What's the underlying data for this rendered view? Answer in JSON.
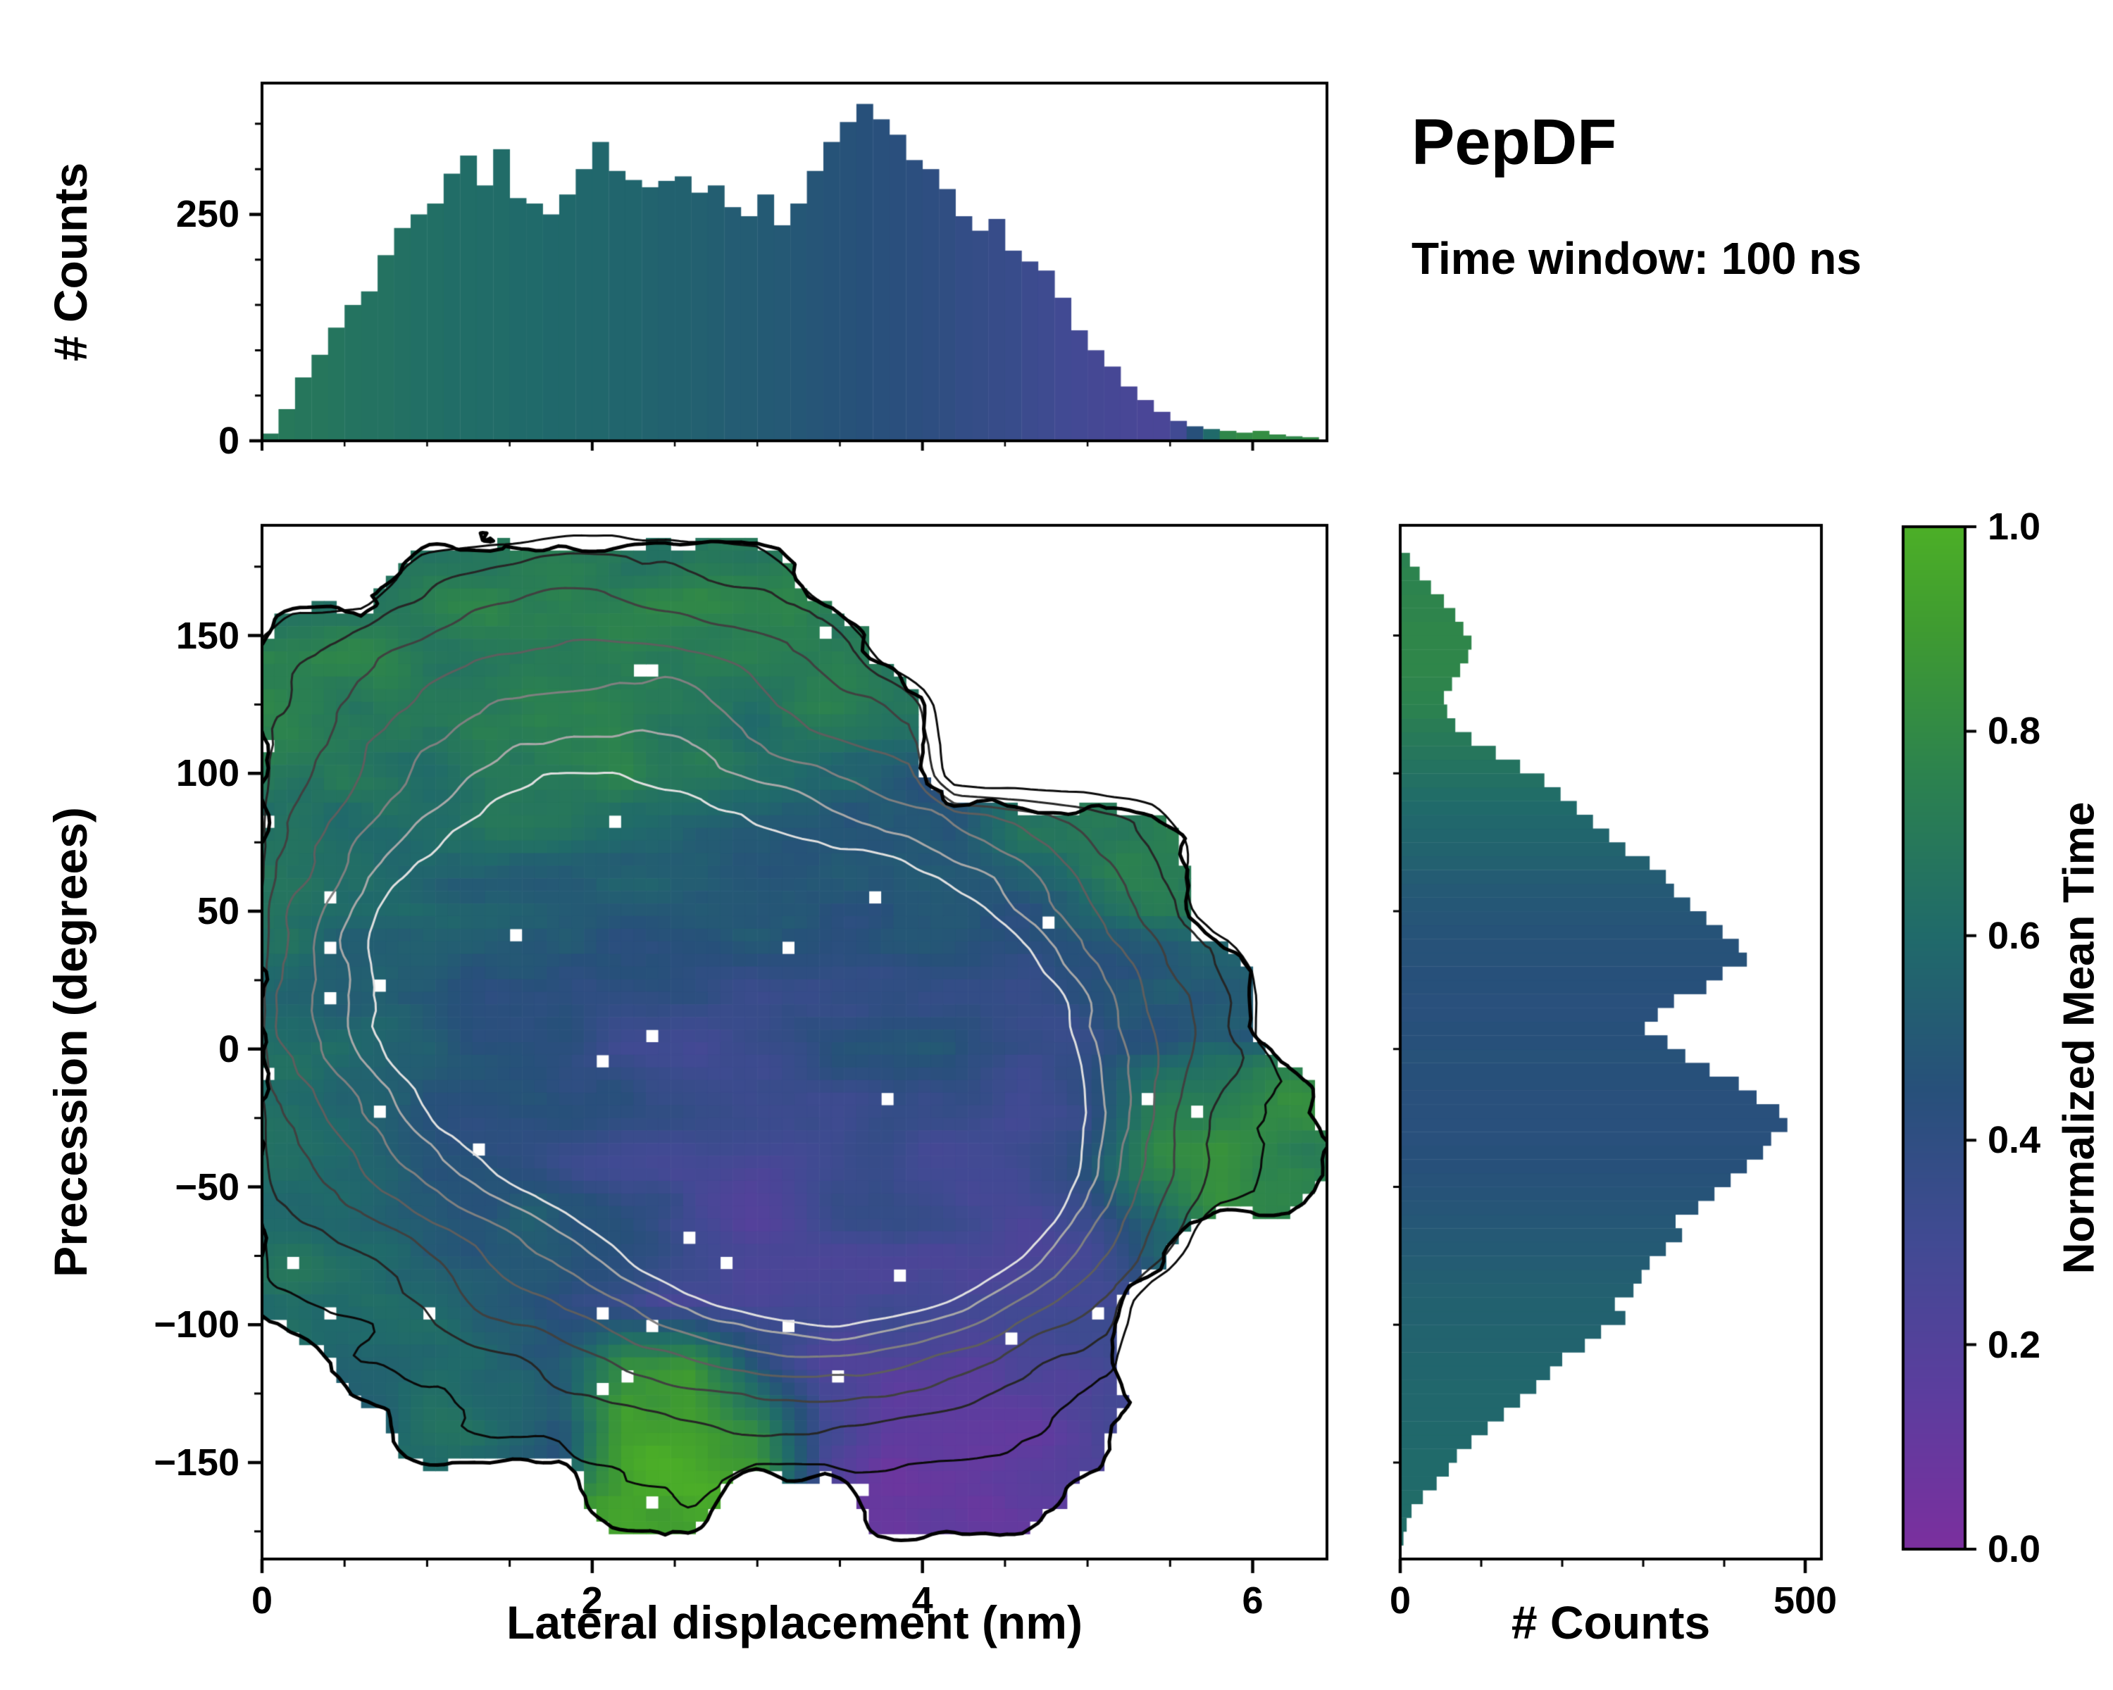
{
  "header": {
    "title": "PepDF",
    "subtitle": "Time window: 100 ns"
  },
  "colors": {
    "background": "#ffffff",
    "axis": "#000000",
    "colormap_stops": [
      [
        0.0,
        "#7b2f9e"
      ],
      [
        0.15,
        "#5c3d9e"
      ],
      [
        0.3,
        "#414a93"
      ],
      [
        0.45,
        "#27507a"
      ],
      [
        0.6,
        "#206a6a"
      ],
      [
        0.75,
        "#2b8150"
      ],
      [
        0.9,
        "#3f9b31"
      ],
      [
        1.0,
        "#4caf27"
      ]
    ]
  },
  "chart_data": [
    {
      "id": "top-histogram",
      "type": "bar",
      "ylabel": "# Counts",
      "xlim": [
        0,
        6.45
      ],
      "ylim": [
        0,
        395
      ],
      "yticks": [
        0,
        250
      ],
      "ytick_labels": [
        "0",
        "250"
      ],
      "x_start": 0,
      "bin_width": 0.1,
      "values": [
        8,
        35,
        70,
        95,
        125,
        150,
        165,
        205,
        235,
        250,
        262,
        295,
        315,
        282,
        322,
        268,
        262,
        250,
        272,
        300,
        330,
        298,
        288,
        280,
        287,
        292,
        274,
        282,
        258,
        248,
        272,
        238,
        262,
        298,
        330,
        352,
        372,
        355,
        338,
        310,
        300,
        278,
        248,
        232,
        245,
        210,
        198,
        188,
        158,
        122,
        100,
        82,
        60,
        45,
        32,
        22,
        16,
        13,
        11,
        9,
        11,
        7,
        5,
        4
      ],
      "color_values": [
        0.7,
        0.69,
        0.68,
        0.68,
        0.67,
        0.66,
        0.65,
        0.65,
        0.64,
        0.63,
        0.63,
        0.62,
        0.62,
        0.61,
        0.61,
        0.6,
        0.6,
        0.59,
        0.59,
        0.58,
        0.58,
        0.57,
        0.57,
        0.56,
        0.55,
        0.55,
        0.54,
        0.53,
        0.52,
        0.52,
        0.51,
        0.5,
        0.49,
        0.48,
        0.47,
        0.46,
        0.45,
        0.44,
        0.43,
        0.42,
        0.41,
        0.4,
        0.38,
        0.37,
        0.36,
        0.35,
        0.33,
        0.32,
        0.3,
        0.29,
        0.28,
        0.27,
        0.26,
        0.25,
        0.25,
        0.3,
        0.45,
        0.6,
        0.78,
        0.8,
        0.82,
        0.8,
        0.78,
        0.8
      ]
    },
    {
      "id": "main-heatmap",
      "type": "heatmap",
      "xlabel": "Lateral displacement (nm)",
      "ylabel": "Precession (degrees)",
      "colorbar_label": "Normalized Mean Time",
      "xlim": [
        0,
        6.45
      ],
      "ylim": [
        -185,
        190
      ],
      "xticks": [
        0,
        2,
        4,
        6
      ],
      "xtick_labels": [
        "0",
        "2",
        "4",
        "6"
      ],
      "yticks": [
        150,
        100,
        50,
        0,
        -50,
        -100,
        -150
      ],
      "ytick_labels": [
        "150",
        "100",
        "50",
        "0",
        "−50",
        "−100",
        "−150"
      ],
      "grid": {
        "x0": 0,
        "x1": 6.4,
        "y_top": 184,
        "y_bottom": -176,
        "cols": 16,
        "rows": 15,
        "values": [
          [
            null,
            null,
            0.7,
            0.72,
            0.75,
            0.7,
            0.73,
            0.7,
            null,
            null,
            null,
            null,
            null,
            null,
            null,
            null
          ],
          [
            0.7,
            0.72,
            0.68,
            0.74,
            0.7,
            0.72,
            0.69,
            0.71,
            0.68,
            null,
            null,
            null,
            null,
            null,
            null,
            null
          ],
          [
            0.72,
            0.7,
            0.73,
            0.69,
            0.71,
            0.74,
            0.7,
            0.68,
            0.7,
            0.66,
            null,
            null,
            null,
            null,
            null,
            null
          ],
          [
            0.68,
            0.7,
            0.66,
            0.69,
            0.67,
            0.7,
            0.65,
            0.6,
            0.55,
            0.5,
            null,
            null,
            null,
            null,
            null,
            null
          ],
          [
            0.64,
            0.62,
            0.6,
            0.63,
            0.58,
            0.56,
            0.54,
            0.52,
            0.5,
            0.48,
            0.46,
            0.7,
            0.74,
            0.72,
            null,
            null
          ],
          [
            0.62,
            0.6,
            0.58,
            0.55,
            0.52,
            0.5,
            0.48,
            0.5,
            0.47,
            0.45,
            0.44,
            0.46,
            0.6,
            0.7,
            null,
            null
          ],
          [
            0.6,
            0.58,
            0.55,
            0.5,
            0.45,
            0.42,
            0.44,
            0.4,
            0.42,
            0.44,
            0.42,
            0.4,
            0.42,
            0.45,
            0.5,
            null
          ],
          [
            0.58,
            0.56,
            0.52,
            0.46,
            0.42,
            0.38,
            0.36,
            0.38,
            0.4,
            0.42,
            0.4,
            0.38,
            0.4,
            0.42,
            0.45,
            null
          ],
          [
            0.6,
            0.55,
            0.5,
            0.45,
            0.4,
            0.35,
            0.33,
            0.3,
            0.32,
            0.35,
            0.38,
            0.36,
            0.4,
            0.75,
            0.8,
            0.78
          ],
          [
            0.58,
            0.55,
            0.52,
            0.48,
            0.42,
            0.36,
            0.3,
            0.28,
            0.3,
            0.32,
            0.3,
            0.33,
            0.5,
            0.78,
            0.8,
            0.75
          ],
          [
            0.6,
            0.57,
            0.54,
            0.5,
            0.45,
            0.4,
            0.3,
            0.25,
            0.27,
            0.3,
            0.28,
            0.3,
            0.35,
            0.6,
            null,
            null
          ],
          [
            0.62,
            0.6,
            0.56,
            0.52,
            0.48,
            0.3,
            0.22,
            0.2,
            0.25,
            0.27,
            0.25,
            0.28,
            0.3,
            null,
            null,
            null
          ],
          [
            null,
            0.6,
            0.58,
            0.55,
            0.5,
            0.9,
            0.95,
            0.5,
            0.2,
            0.18,
            0.2,
            0.22,
            0.25,
            null,
            null,
            null
          ],
          [
            null,
            null,
            0.6,
            0.55,
            0.5,
            0.92,
            0.95,
            0.9,
            0.3,
            0.15,
            0.15,
            0.18,
            0.2,
            null,
            null,
            null
          ],
          [
            null,
            null,
            null,
            null,
            null,
            0.9,
            0.92,
            null,
            null,
            0.12,
            0.15,
            0.12,
            null,
            null,
            null,
            null
          ]
        ]
      },
      "density_peaks": [
        {
          "x": 2.9,
          "y": -15,
          "sx": 1.5,
          "sy": 75,
          "amp": 0.9
        },
        {
          "x": 1.4,
          "y": 30,
          "sx": 1.1,
          "sy": 55,
          "amp": 0.75
        },
        {
          "x": 3.6,
          "y": -45,
          "sx": 0.85,
          "sy": 40,
          "amp": 0.95
        },
        {
          "x": 2.0,
          "y": 130,
          "sx": 1.3,
          "sy": 45,
          "amp": 0.42
        },
        {
          "x": 4.3,
          "y": 15,
          "sx": 0.95,
          "sy": 60,
          "amp": 0.5
        }
      ],
      "contours": {
        "levels": [
          0.16,
          0.28,
          0.4,
          0.52,
          0.64,
          0.76,
          0.86
        ],
        "colors": [
          "#0a0a0a",
          "#262626",
          "#404040",
          "#5e5e5e",
          "#808080",
          "#a8a8a8",
          "#e0e0e0"
        ],
        "boundary_color": "#000000"
      }
    },
    {
      "id": "right-histogram",
      "type": "bar",
      "orientation": "horizontal",
      "xlabel": "# Counts",
      "xlim": [
        0,
        520
      ],
      "xticks": [
        0,
        500
      ],
      "xtick_labels": [
        "0",
        "500"
      ],
      "ylim": [
        -185,
        190
      ],
      "y_start": -180,
      "bin_width": 5,
      "values": [
        4,
        8,
        14,
        28,
        45,
        60,
        70,
        88,
        108,
        128,
        148,
        168,
        185,
        200,
        228,
        248,
        278,
        265,
        288,
        298,
        308,
        328,
        348,
        340,
        368,
        388,
        408,
        428,
        448,
        458,
        478,
        468,
        440,
        418,
        382,
        352,
        330,
        302,
        318,
        338,
        378,
        398,
        428,
        418,
        398,
        378,
        358,
        338,
        328,
        308,
        278,
        258,
        238,
        218,
        198,
        178,
        148,
        118,
        88,
        68,
        58,
        54,
        64,
        74,
        84,
        88,
        78,
        68,
        54,
        38,
        24,
        12
      ],
      "color_values": [
        0.62,
        0.62,
        0.61,
        0.61,
        0.6,
        0.6,
        0.6,
        0.59,
        0.59,
        0.58,
        0.58,
        0.58,
        0.57,
        0.57,
        0.56,
        0.56,
        0.55,
        0.55,
        0.54,
        0.53,
        0.52,
        0.51,
        0.5,
        0.49,
        0.48,
        0.47,
        0.46,
        0.45,
        0.45,
        0.44,
        0.44,
        0.44,
        0.44,
        0.45,
        0.45,
        0.46,
        0.45,
        0.45,
        0.44,
        0.44,
        0.45,
        0.45,
        0.46,
        0.46,
        0.47,
        0.48,
        0.49,
        0.5,
        0.52,
        0.54,
        0.56,
        0.57,
        0.58,
        0.6,
        0.62,
        0.64,
        0.66,
        0.68,
        0.7,
        0.72,
        0.75,
        0.76,
        0.77,
        0.78,
        0.78,
        0.78,
        0.78,
        0.77,
        0.77,
        0.76,
        0.76,
        0.75
      ]
    },
    {
      "id": "colorbar",
      "type": "colorbar",
      "label": "Normalized Mean Time",
      "range": [
        0,
        1
      ],
      "ticks": [
        0,
        0.2,
        0.4,
        0.6,
        0.8,
        1
      ],
      "tick_labels": [
        "0.0",
        "0.2",
        "0.4",
        "0.6",
        "0.8",
        "1.0"
      ]
    }
  ]
}
